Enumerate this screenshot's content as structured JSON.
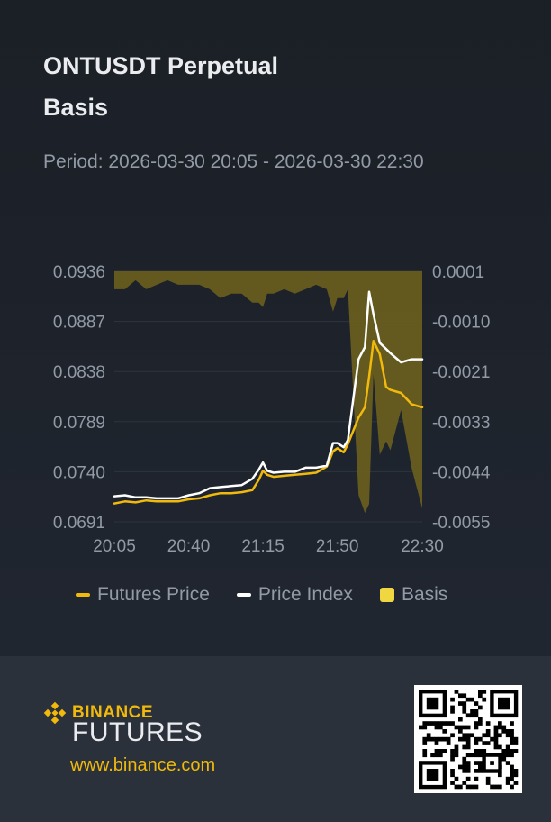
{
  "header": {
    "title": "ONTUSDT Perpetual",
    "subtitle": "Basis",
    "period": "Period: 2026-03-30 20:05 - 2026-03-30 22:30"
  },
  "legend": {
    "futures": "Futures Price",
    "index": "Price Index",
    "basis": "Basis"
  },
  "footer": {
    "brand": "BINANCE",
    "product": "FUTURES",
    "url": "www.binance.com"
  },
  "colors": {
    "futures": "#f0b90b",
    "index": "#ffffff",
    "basis_fill": "#6b5f1e",
    "grid": "#2e343e",
    "tick": "#929aa5"
  },
  "chart_data": {
    "type": "line",
    "x_ticks": [
      "20:05",
      "20:40",
      "21:15",
      "21:50",
      "22:30"
    ],
    "x_start": "20:05",
    "x_end": "22:30",
    "y_left_ticks": [
      "0.0936",
      "0.0887",
      "0.0838",
      "0.0789",
      "0.0740",
      "0.0691"
    ],
    "y_right_ticks": [
      "0.0001",
      "-0.0010",
      "-0.0021",
      "-0.0033",
      "-0.0044",
      "-0.0055"
    ],
    "ylim_left": [
      0.0691,
      0.0936
    ],
    "ylim_right": [
      -0.0055,
      0.0001
    ],
    "grid": true,
    "legend_position": "bottom",
    "series": [
      {
        "name": "Futures Price",
        "axis": "left",
        "x": [
          "20:05",
          "20:10",
          "20:15",
          "20:20",
          "20:25",
          "20:30",
          "20:35",
          "20:40",
          "20:45",
          "20:50",
          "20:55",
          "21:00",
          "21:05",
          "21:10",
          "21:13",
          "21:15",
          "21:17",
          "21:20",
          "21:25",
          "21:30",
          "21:35",
          "21:40",
          "21:45",
          "21:48",
          "21:50",
          "21:53",
          "21:55",
          "22:00",
          "22:03",
          "22:05",
          "22:07",
          "22:10",
          "22:13",
          "22:15",
          "22:20",
          "22:25",
          "22:30"
        ],
        "values": [
          0.0709,
          0.0711,
          0.071,
          0.0712,
          0.0711,
          0.0711,
          0.0711,
          0.0713,
          0.0714,
          0.0717,
          0.0719,
          0.0719,
          0.072,
          0.0722,
          0.0732,
          0.0741,
          0.0737,
          0.0735,
          0.0736,
          0.0737,
          0.0738,
          0.0739,
          0.0745,
          0.076,
          0.0763,
          0.0759,
          0.0767,
          0.0793,
          0.0803,
          0.0833,
          0.0868,
          0.0855,
          0.0823,
          0.082,
          0.0817,
          0.0806,
          0.0803
        ]
      },
      {
        "name": "Price Index",
        "axis": "left",
        "x": [
          "20:05",
          "20:10",
          "20:15",
          "20:20",
          "20:25",
          "20:30",
          "20:35",
          "20:40",
          "20:45",
          "20:50",
          "20:55",
          "21:00",
          "21:05",
          "21:10",
          "21:13",
          "21:15",
          "21:17",
          "21:20",
          "21:25",
          "21:30",
          "21:35",
          "21:40",
          "21:45",
          "21:48",
          "21:50",
          "21:53",
          "21:55",
          "22:00",
          "22:03",
          "22:05",
          "22:07",
          "22:10",
          "22:13",
          "22:15",
          "22:20",
          "22:25",
          "22:30"
        ],
        "values": [
          0.0716,
          0.0717,
          0.0715,
          0.0715,
          0.0714,
          0.0714,
          0.0714,
          0.0717,
          0.0719,
          0.0724,
          0.0725,
          0.0726,
          0.0727,
          0.0733,
          0.0742,
          0.0749,
          0.0741,
          0.0739,
          0.074,
          0.074,
          0.0744,
          0.0744,
          0.0746,
          0.0768,
          0.0768,
          0.0764,
          0.0771,
          0.085,
          0.0862,
          0.0916,
          0.0894,
          0.0866,
          0.086,
          0.0856,
          0.0847,
          0.085,
          0.085
        ]
      },
      {
        "name": "Basis",
        "axis": "right",
        "type": "area",
        "x": [
          "20:05",
          "20:10",
          "20:15",
          "20:20",
          "20:25",
          "20:30",
          "20:35",
          "20:40",
          "20:45",
          "20:50",
          "20:55",
          "21:00",
          "21:05",
          "21:10",
          "21:13",
          "21:15",
          "21:17",
          "21:20",
          "21:25",
          "21:30",
          "21:35",
          "21:40",
          "21:45",
          "21:48",
          "21:50",
          "21:53",
          "21:55",
          "22:00",
          "22:03",
          "22:05",
          "22:07",
          "22:10",
          "22:13",
          "22:15",
          "22:20",
          "22:25",
          "22:30"
        ],
        "values": [
          -0.0003,
          -0.0003,
          -0.0001,
          -0.0003,
          -0.0002,
          -0.0001,
          -0.0002,
          -0.0002,
          -0.0002,
          -0.0003,
          -0.0005,
          -0.0004,
          -0.0004,
          -0.0006,
          -0.0006,
          -0.0007,
          -0.0004,
          -0.0004,
          -0.0003,
          -0.0004,
          -0.0003,
          -0.0002,
          -0.0003,
          -0.0008,
          -0.0005,
          -0.0005,
          -0.0003,
          -0.0049,
          -0.0053,
          -0.0051,
          -0.0022,
          -0.004,
          -0.0037,
          -0.0039,
          -0.003,
          -0.0043,
          -0.0052
        ]
      }
    ]
  }
}
